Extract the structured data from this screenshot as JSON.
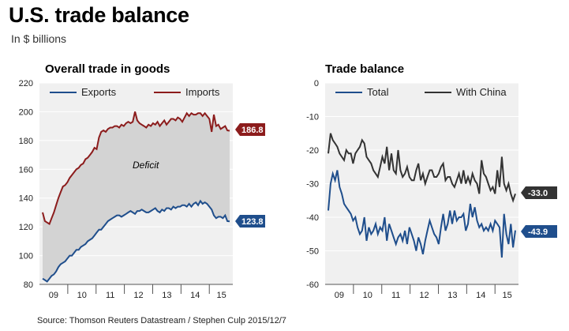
{
  "header": {
    "title": "U.S. trade balance",
    "subtitle": "In $ billions",
    "source": "Source: Thomson Reuters Datastream / Stephen Culp 2015/12/7"
  },
  "colors": {
    "exports": "#1f4e8c",
    "imports": "#8c1c1c",
    "total": "#1f4e8c",
    "china": "#333333",
    "panel_bg": "#f0f0f0",
    "deficit_fill": "#d3d3d3"
  },
  "chart_data": [
    {
      "type": "line",
      "title": "Overall trade in goods",
      "annotation": "Deficit",
      "ylim": [
        80,
        220
      ],
      "yticks": [
        80,
        100,
        120,
        140,
        160,
        180,
        200,
        220
      ],
      "xticks": [
        "09",
        "10",
        "11",
        "12",
        "13",
        "14",
        "15"
      ],
      "x_start": 2009.0,
      "x_end": 2015.83,
      "legend_position": "top",
      "end_labels": [
        "186.8",
        "123.8"
      ],
      "series": [
        {
          "name": "Exports",
          "values": [
            84,
            83,
            82,
            84,
            86,
            87,
            89,
            92,
            94,
            95,
            96,
            98,
            100,
            100,
            102,
            104,
            104,
            106,
            107,
            108,
            110,
            111,
            112,
            114,
            116,
            118,
            118,
            120,
            122,
            124,
            125,
            126,
            127,
            128,
            128,
            127,
            128,
            129,
            130,
            131,
            130,
            129,
            131,
            131,
            132,
            131,
            130,
            130,
            131,
            132,
            133,
            131,
            130,
            132,
            131,
            133,
            133,
            132,
            134,
            133,
            134,
            134,
            135,
            135,
            134,
            136,
            134,
            136,
            137,
            135,
            138,
            136,
            137,
            136,
            134,
            132,
            128,
            126,
            127,
            127,
            126,
            128,
            124,
            123.8
          ]
        },
        {
          "name": "Imports",
          "values": [
            130,
            124,
            123,
            122,
            126,
            130,
            135,
            140,
            144,
            148,
            149,
            151,
            154,
            156,
            158,
            160,
            161,
            163,
            164,
            167,
            168,
            170,
            172,
            175,
            174,
            182,
            186,
            187,
            186,
            188,
            189,
            189,
            190,
            190,
            189,
            191,
            190,
            192,
            193,
            192,
            193,
            200,
            194,
            192,
            191,
            190,
            189,
            191,
            190,
            192,
            191,
            193,
            190,
            192,
            194,
            191,
            193,
            195,
            195,
            194,
            196,
            195,
            193,
            196,
            199,
            197,
            199,
            198,
            198,
            199,
            199,
            197,
            199,
            197,
            195,
            186,
            198,
            190,
            191,
            188,
            189,
            190,
            187,
            186.8
          ]
        }
      ]
    },
    {
      "type": "line",
      "title": "Trade balance",
      "ylim": [
        -60,
        0
      ],
      "yticks": [
        0,
        -10,
        -20,
        -30,
        -40,
        -50,
        -60
      ],
      "xticks": [
        "09",
        "10",
        "11",
        "12",
        "13",
        "14",
        "15"
      ],
      "x_start": 2009.0,
      "x_end": 2015.83,
      "legend_position": "top",
      "end_labels": [
        "-33.0",
        "-43.9"
      ],
      "series": [
        {
          "name": "Total",
          "values": [
            -38,
            -30,
            -27,
            -29,
            -26,
            -31,
            -33,
            -36,
            -37,
            -38,
            -39,
            -41,
            -40,
            -43,
            -45,
            -44,
            -40,
            -47,
            -43,
            -45,
            -44,
            -42,
            -45,
            -43,
            -44,
            -40,
            -47,
            -42,
            -44,
            -46,
            -48,
            -46,
            -45,
            -47,
            -44,
            -48,
            -43,
            -45,
            -47,
            -50,
            -46,
            -48,
            -51,
            -47,
            -44,
            -41,
            -43,
            -45,
            -46,
            -48,
            -43,
            -39,
            -44,
            -42,
            -38,
            -42,
            -38,
            -41,
            -40,
            -40,
            -39,
            -44,
            -42,
            -36,
            -40,
            -37,
            -41,
            -43,
            -42,
            -44,
            -43,
            -44,
            -42,
            -44,
            -41,
            -42,
            -43,
            -52,
            -39,
            -45,
            -48,
            -42,
            -49,
            -43.9
          ]
        },
        {
          "name": "With China",
          "values": [
            -21,
            -15,
            -17,
            -18,
            -19,
            -21,
            -22,
            -23,
            -20,
            -21,
            -21,
            -24,
            -21,
            -20,
            -19,
            -17,
            -18,
            -22,
            -23,
            -24,
            -26,
            -27,
            -28,
            -25,
            -22,
            -24,
            -19,
            -26,
            -21,
            -26,
            -27,
            -20,
            -26,
            -28,
            -27,
            -25,
            -28,
            -29,
            -29,
            -26,
            -24,
            -29,
            -27,
            -30,
            -28,
            -26,
            -26,
            -28,
            -28,
            -27,
            -25,
            -24,
            -29,
            -28,
            -28,
            -30,
            -31,
            -29,
            -27,
            -30,
            -26,
            -30,
            -28,
            -30,
            -27,
            -29,
            -30,
            -33,
            -23,
            -27,
            -28,
            -30,
            -32,
            -31,
            -33,
            -26,
            -31,
            -22,
            -30,
            -32,
            -30,
            -33,
            -35,
            -33.0
          ]
        }
      ]
    }
  ]
}
